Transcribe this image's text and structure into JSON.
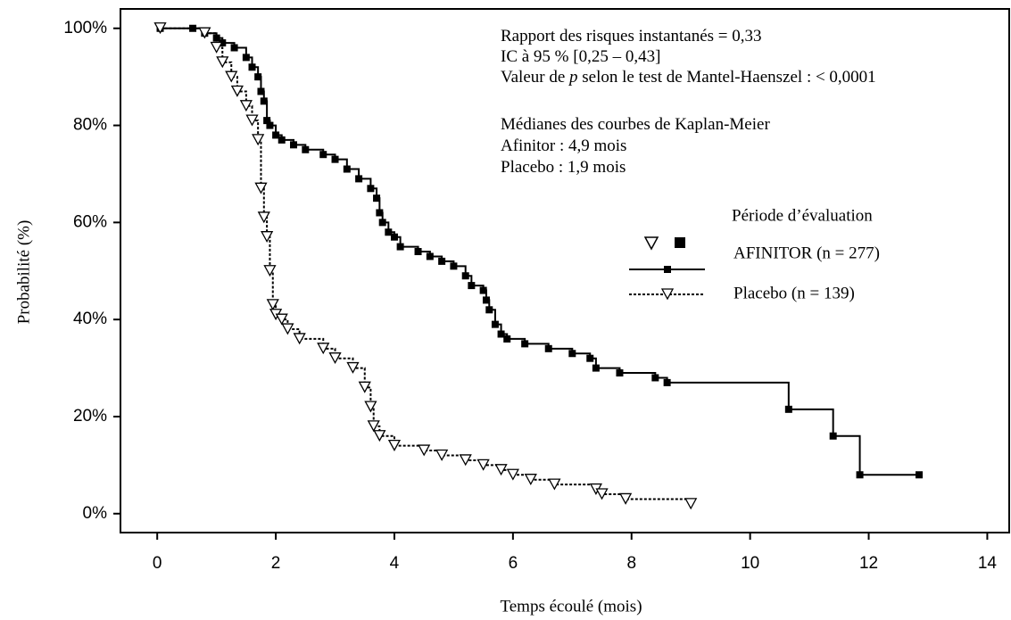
{
  "chart_data": {
    "type": "step",
    "x_label": "Temps écoulé (mois)",
    "y_label": "Probabilité (%)",
    "xlim": [
      -0.62,
      14.4
    ],
    "ylim": [
      -3.9,
      104
    ],
    "xticks": [
      0,
      2,
      4,
      6,
      8,
      10,
      12,
      14
    ],
    "yticks": [
      {
        "value": 0,
        "label": "0%"
      },
      {
        "value": 20,
        "label": "20%"
      },
      {
        "value": 40,
        "label": "40%"
      },
      {
        "value": 60,
        "label": "60%"
      },
      {
        "value": 80,
        "label": "80%"
      },
      {
        "value": 100,
        "label": "100%"
      }
    ],
    "annotations": [
      [
        "Rapport des risques instantanés = 0,33"
      ],
      [
        "IC à 95 % [0,25 – 0,43]"
      ],
      [
        "Valeur de ",
        "p",
        " selon le test de Mantel-Haenszel : < 0,0001"
      ],
      [
        "Médianes des courbes de Kaplan-Meier"
      ],
      [
        "Afinitor : 4,9 mois"
      ],
      [
        "Placebo : 1,9 mois"
      ]
    ],
    "legend_title": "Période d’évaluation",
    "series": [
      {
        "name": "AFINITOR (n = 277)",
        "color": "#000000",
        "style": "solid",
        "marker": "square",
        "x": [
          0.05,
          0.6,
          0.8,
          1.0,
          1.1,
          1.3,
          1.5,
          1.6,
          1.7,
          1.75,
          1.8,
          1.85,
          1.9,
          2.0,
          2.1,
          2.3,
          2.5,
          2.8,
          3.0,
          3.2,
          3.4,
          3.6,
          3.7,
          3.75,
          3.8,
          3.9,
          4.0,
          4.1,
          4.4,
          4.6,
          4.8,
          5.0,
          5.2,
          5.3,
          5.5,
          5.55,
          5.6,
          5.7,
          5.8,
          5.9,
          6.2,
          6.6,
          7.0,
          7.3,
          7.4,
          7.8,
          8.4,
          8.6,
          10.65,
          11.4,
          11.85,
          12.85
        ],
        "values": [
          100,
          100,
          99,
          98,
          97,
          96,
          94,
          92,
          90,
          87,
          85,
          81,
          80,
          78,
          77,
          76,
          75,
          74,
          73,
          71,
          69,
          67,
          65,
          62,
          60,
          58,
          57,
          55,
          54,
          53,
          52,
          51,
          49,
          47,
          46,
          44,
          42,
          39,
          37,
          36,
          35,
          34,
          33,
          32,
          30,
          29,
          28,
          27,
          21.5,
          16,
          8,
          8
        ]
      },
      {
        "name": "Placebo (n = 139)",
        "color": "#000000",
        "style": "dotted",
        "marker": "triangle",
        "x": [
          0.05,
          0.8,
          1.0,
          1.1,
          1.25,
          1.35,
          1.5,
          1.6,
          1.7,
          1.75,
          1.8,
          1.85,
          1.9,
          1.95,
          2.0,
          2.1,
          2.2,
          2.4,
          2.8,
          3.0,
          3.3,
          3.5,
          3.6,
          3.65,
          3.75,
          4.0,
          4.5,
          4.8,
          5.2,
          5.5,
          5.8,
          6.0,
          6.3,
          6.7,
          7.4,
          7.5,
          7.9,
          9.0
        ],
        "values": [
          100,
          99,
          96,
          93,
          90,
          87,
          84,
          81,
          77,
          67,
          61,
          57,
          50,
          43,
          41,
          40,
          38,
          36,
          34,
          32,
          30,
          26,
          22,
          18,
          16,
          14,
          13,
          12,
          11,
          10,
          9,
          8,
          7,
          6,
          5,
          4,
          3,
          2
        ]
      }
    ]
  }
}
